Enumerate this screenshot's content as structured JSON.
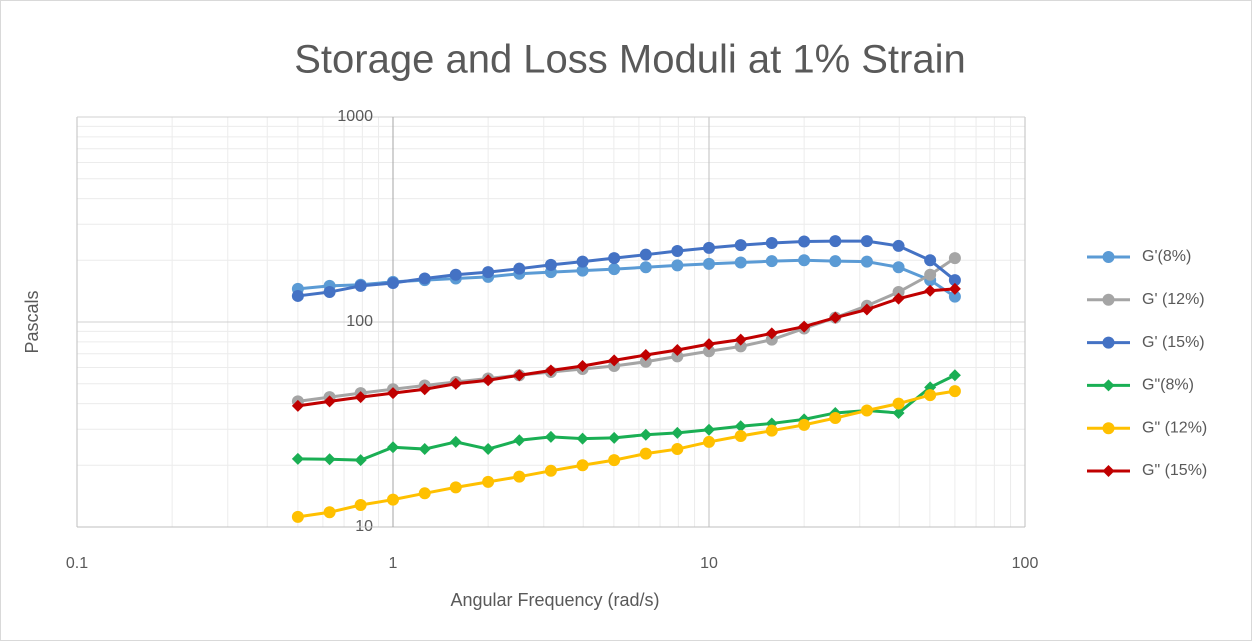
{
  "chart_data": {
    "type": "line",
    "title": "Storage and Loss Moduli at 1% Strain",
    "x_label": "Angular Frequency (rad/s)",
    "y_label": "Pascals",
    "x": [
      0.5,
      0.63,
      0.79,
      1,
      1.26,
      1.58,
      2,
      2.51,
      3.16,
      3.98,
      5.01,
      6.31,
      7.94,
      10,
      12.6,
      15.8,
      20,
      25.1,
      31.6,
      39.8,
      50.1,
      60
    ],
    "xlim": [
      0.1,
      100
    ],
    "xticks": [
      0.1,
      1,
      10,
      100
    ],
    "ylim": [
      10,
      1000
    ],
    "yticks": [
      10,
      100,
      1000
    ],
    "xlog": true,
    "ylog": true,
    "grid": true,
    "legend": "right",
    "series": [
      {
        "name": "G'(8%)",
        "color": "#5b9bd5",
        "marker": "circle",
        "values": [
          145,
          150,
          152,
          157,
          160,
          163,
          166,
          172,
          175,
          178,
          181,
          185,
          189,
          192,
          195,
          198,
          200,
          198,
          197,
          185,
          160,
          133
        ]
      },
      {
        "name": "G' (12%)",
        "color": "#a5a5a5",
        "marker": "circle",
        "values": [
          41,
          43,
          45,
          47,
          49,
          51,
          53,
          55,
          57,
          59,
          61,
          64,
          68,
          72,
          76,
          82,
          93,
          105,
          120,
          140,
          170,
          205
        ]
      },
      {
        "name": "G' (15%)",
        "color": "#4472c4",
        "marker": "circle",
        "values": [
          134,
          140,
          150,
          155,
          163,
          170,
          175,
          182,
          190,
          197,
          205,
          213,
          222,
          230,
          237,
          243,
          247,
          248,
          248,
          235,
          200,
          160
        ]
      },
      {
        "name": "G\"(8%)",
        "color": "#1aaf54",
        "marker": "diamond",
        "values": [
          21.5,
          21.4,
          21.2,
          24.5,
          24,
          26,
          24,
          26.5,
          27.5,
          27,
          27.2,
          28.2,
          28.8,
          29.8,
          31,
          32,
          33.5,
          36,
          37,
          36,
          48,
          55
        ]
      },
      {
        "name": "G\" (12%)",
        "color": "#ffc000",
        "marker": "circle",
        "values": [
          11.2,
          11.8,
          12.8,
          13.6,
          14.6,
          15.6,
          16.6,
          17.6,
          18.8,
          20,
          21.2,
          22.8,
          24,
          26,
          27.8,
          29.5,
          31.5,
          34,
          37,
          40,
          44,
          46
        ]
      },
      {
        "name": "G\" (15%)",
        "color": "#c00000",
        "marker": "diamond",
        "values": [
          39,
          41,
          43,
          45,
          47,
          50,
          52,
          55,
          58,
          61,
          65,
          69,
          73,
          78,
          82,
          88,
          95,
          105,
          115,
          130,
          142,
          145
        ]
      }
    ]
  }
}
